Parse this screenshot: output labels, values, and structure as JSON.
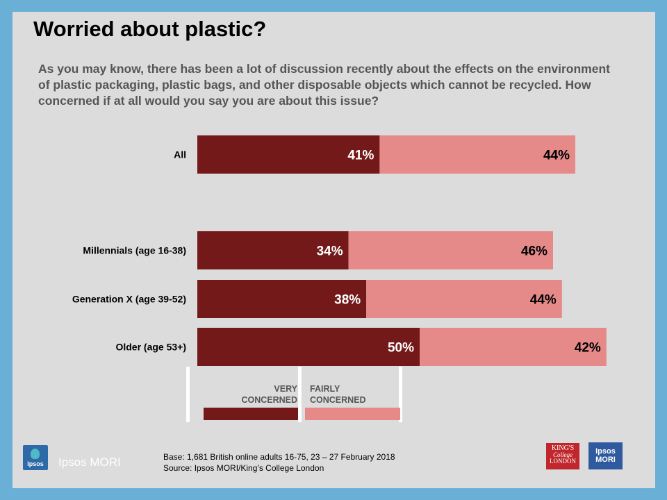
{
  "title": "Worried about plastic?",
  "question": "As you may know, there has been a lot of discussion recently about the effects on the environment of plastic packaging, plastic bags, and other disposable objects which cannot be recycled. How concerned if at all would you say you are about this issue?",
  "colors": {
    "very_concerned": "#731919",
    "fairly_concerned": "#e58a89",
    "slide_background": "#dcdcdc",
    "frame": "#6aafd6"
  },
  "chart_data": {
    "type": "bar",
    "orientation": "horizontal",
    "stacked": true,
    "categories": [
      "All",
      "Millennials  (age 16-38)",
      "Generation  X (age 39-52)",
      "Older (age 53+)"
    ],
    "series": [
      {
        "name": "VERY CONCERNED",
        "values": [
          41,
          34,
          38,
          50
        ],
        "labels": [
          "41%",
          "34%",
          "38%",
          "50%"
        ]
      },
      {
        "name": "FAIRLY CONCERNED",
        "values": [
          44,
          46,
          44,
          42
        ],
        "labels": [
          "44%",
          "46%",
          "44%",
          "42%"
        ]
      }
    ],
    "xlim": [
      0,
      100
    ],
    "grid": false,
    "legend": "bottom"
  },
  "legend": {
    "very_line1": "VERY",
    "very_line2": "CONCERNED",
    "fairly_line1": "FAIRLY",
    "fairly_line2": "CONCERNED"
  },
  "footer": {
    "base": "Base: 1,681 British online adults 16-75, 23 – 27 February 2018",
    "source": "Source: Ipsos MORI/King’s College London"
  },
  "logos": {
    "ipsos_mark": "Ipsos",
    "ipsos_wordmark": "Ipsos MORI",
    "kings_line1": "KING'S",
    "kings_line2": "College",
    "kings_line3": "LONDON",
    "mori_line1": "Ipsos",
    "mori_line2": "MORI"
  }
}
